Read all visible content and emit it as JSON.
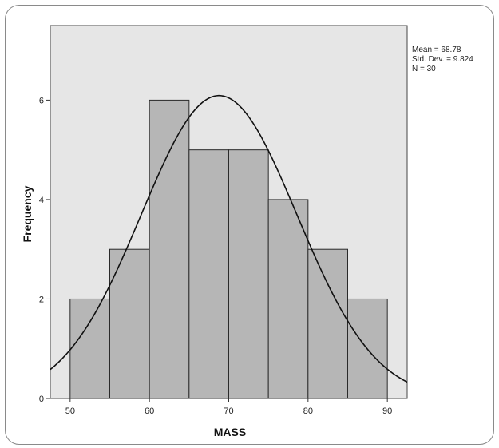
{
  "chart_data": {
    "type": "bar",
    "subtype": "histogram",
    "xlabel": "MASS",
    "ylabel": "Frequency",
    "xlim": [
      47.5,
      92.5
    ],
    "ylim": [
      0,
      7.5
    ],
    "x_ticks": [
      50,
      60,
      70,
      80,
      90
    ],
    "y_ticks": [
      0,
      2,
      4,
      6
    ],
    "bins": [
      {
        "start": 50,
        "end": 55,
        "count": 2
      },
      {
        "start": 55,
        "end": 60,
        "count": 3
      },
      {
        "start": 60,
        "end": 65,
        "count": 6
      },
      {
        "start": 65,
        "end": 70,
        "count": 5
      },
      {
        "start": 70,
        "end": 75,
        "count": 5
      },
      {
        "start": 75,
        "end": 80,
        "count": 4
      },
      {
        "start": 80,
        "end": 85,
        "count": 3
      },
      {
        "start": 85,
        "end": 90,
        "count": 2
      }
    ],
    "normal_curve": {
      "mean": 68.78,
      "sd": 9.824,
      "n": 30,
      "bin_width": 5
    },
    "stats_lines": [
      "Mean = 68.78",
      "Std. Dev. = 9.824",
      "N = 30"
    ],
    "grid": false,
    "colors": {
      "plot_background": "#e6e6e6",
      "bar_fill": "#b6b6b6",
      "bar_stroke": "#2a2a2a",
      "curve": "#111111"
    }
  }
}
